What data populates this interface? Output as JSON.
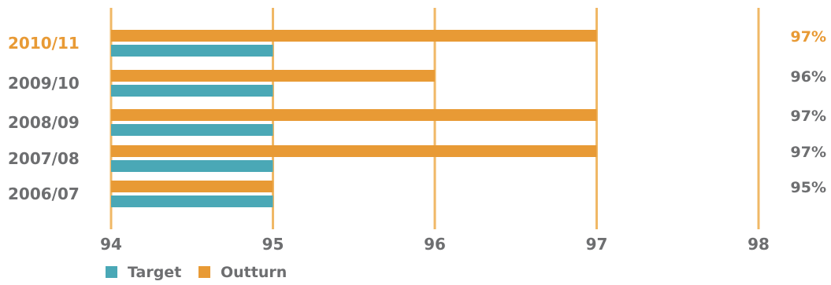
{
  "chart_data": {
    "type": "bar",
    "orientation": "horizontal",
    "categories": [
      "2010/11",
      "2009/10",
      "2008/09",
      "2007/08",
      "2006/07"
    ],
    "highlight_category": "2010/11",
    "series": [
      {
        "name": "Outturn",
        "values": [
          97,
          96,
          97,
          97,
          95
        ],
        "color": "#e89a35"
      },
      {
        "name": "Target",
        "values": [
          95,
          95,
          95,
          95,
          95
        ],
        "color": "#4aa8b6"
      }
    ],
    "value_labels": [
      "97%",
      "96%",
      "97%",
      "97%",
      "95%"
    ],
    "xlim": [
      94,
      98
    ],
    "xticks": [
      "94",
      "95",
      "96",
      "97",
      "98"
    ],
    "grid": true,
    "legend_position": "bottom-left",
    "legend": [
      {
        "label": "Target",
        "color": "#4aa8b6"
      },
      {
        "label": "Outturn",
        "color": "#e89a35"
      }
    ],
    "colors": {
      "gridline": "#f0b866",
      "category_text": "#6d6e70",
      "highlight_text": "#e89a35"
    }
  }
}
